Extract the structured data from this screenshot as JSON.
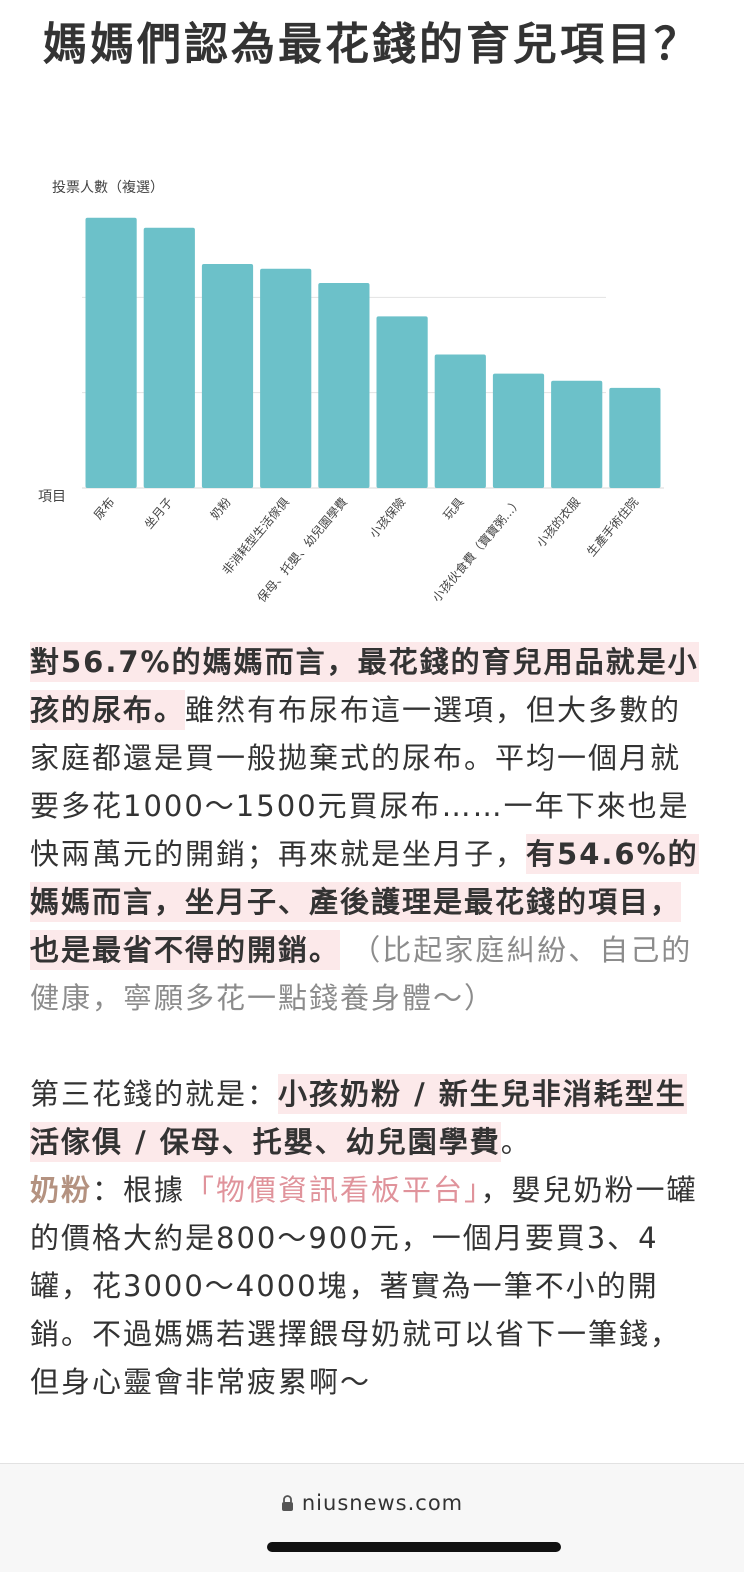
{
  "article": {
    "title": "媽媽們認為最花錢的育兒項目？",
    "p1": {
      "hl1": "對56.7%的媽媽而言，最花錢的育兒用品就是小孩的尿布。",
      "t1": "雖然有布尿布這一選項，但大多數的家庭都還是買一般拋棄式的尿布。平均一個月就要多花1000～1500元買尿布……一年下來也是快兩萬元的開銷；再來就是坐月子，",
      "hl2": "有54.6%的媽媽而言，坐月子、產後護理是最花錢的項目，也是最省不得的開銷。",
      "muted": " （比起家庭糾紛、自己的健康，寧願多花一點錢養身體～）"
    },
    "p2": {
      "t1": "第三花錢的就是：",
      "hl1": "小孩奶粉 / 新生兒非消耗型生活傢俱 / 保母、托嬰、幼兒園學費",
      "t2": "。"
    },
    "p3": {
      "label": "奶粉",
      "colon": "：根據",
      "link": "「物價資訊看板平台」",
      "t1": "，嬰兒奶粉一罐的價格大約是800～900元，一個月要買3、4罐，花3000～4000塊，著實為一筆不小的開銷。不過媽媽若選擇餵母奶就可以省下一筆錢，但身心靈會非常疲累啊～"
    }
  },
  "chart_data": {
    "type": "bar",
    "ylabel": "投票人數（複選）",
    "xlabel": "項目",
    "categories": [
      "尿布",
      "坐月子",
      "奶粉",
      "非消耗型生活傢俱",
      "保母、托嬰、幼兒園學費",
      "小孩保險",
      "玩具",
      "小孩伙食費（寶寶粥...）",
      "小孩的衣服",
      "生產手術住院"
    ],
    "values": [
      56.7,
      54.6,
      47.0,
      46.0,
      43.0,
      36.0,
      28.0,
      24.0,
      22.5,
      21.0
    ],
    "ylim": [
      0,
      60
    ],
    "grid": true,
    "color": "#6cc1c9"
  },
  "footer": {
    "url": "niusnews.com",
    "icon": "lock-icon"
  },
  "colors": {
    "highlight_bg": "#fce9ea",
    "bar": "#6cc1c9",
    "link": "#e0939b",
    "label": "#b49280"
  }
}
